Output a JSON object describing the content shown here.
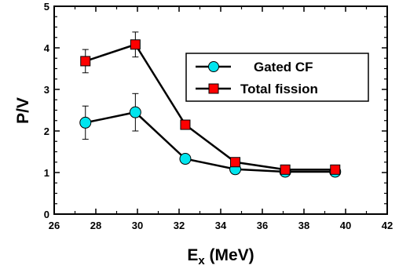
{
  "chart_data": {
    "type": "line",
    "title": "",
    "xlabel_main": "E",
    "xlabel_sub": "x",
    "xlabel_unit": " (MeV)",
    "ylabel": "P/V",
    "xlim": [
      26,
      42
    ],
    "ylim": [
      0,
      5
    ],
    "x_ticks": [
      26,
      28,
      30,
      32,
      34,
      36,
      38,
      40,
      42
    ],
    "y_ticks": [
      0,
      1,
      2,
      3,
      4,
      5
    ],
    "grid": false,
    "legend_position": "top-right",
    "series": [
      {
        "name": "Gated CF",
        "marker": "circle",
        "color": "#00e5ee",
        "x": [
          27.5,
          29.9,
          32.3,
          34.7,
          37.1,
          39.5
        ],
        "y": [
          2.2,
          2.45,
          1.33,
          1.08,
          1.02,
          1.02
        ],
        "err": [
          0.4,
          0.45,
          0.1,
          0.04,
          0.03,
          0.03
        ]
      },
      {
        "name": "Total fission",
        "marker": "square",
        "color": "#ff0000",
        "x": [
          27.5,
          29.9,
          32.3,
          34.7,
          37.1,
          39.5
        ],
        "y": [
          3.68,
          4.08,
          2.15,
          1.25,
          1.07,
          1.07
        ],
        "err": [
          0.28,
          0.3,
          0.08,
          0.04,
          0.03,
          0.03
        ]
      }
    ]
  }
}
